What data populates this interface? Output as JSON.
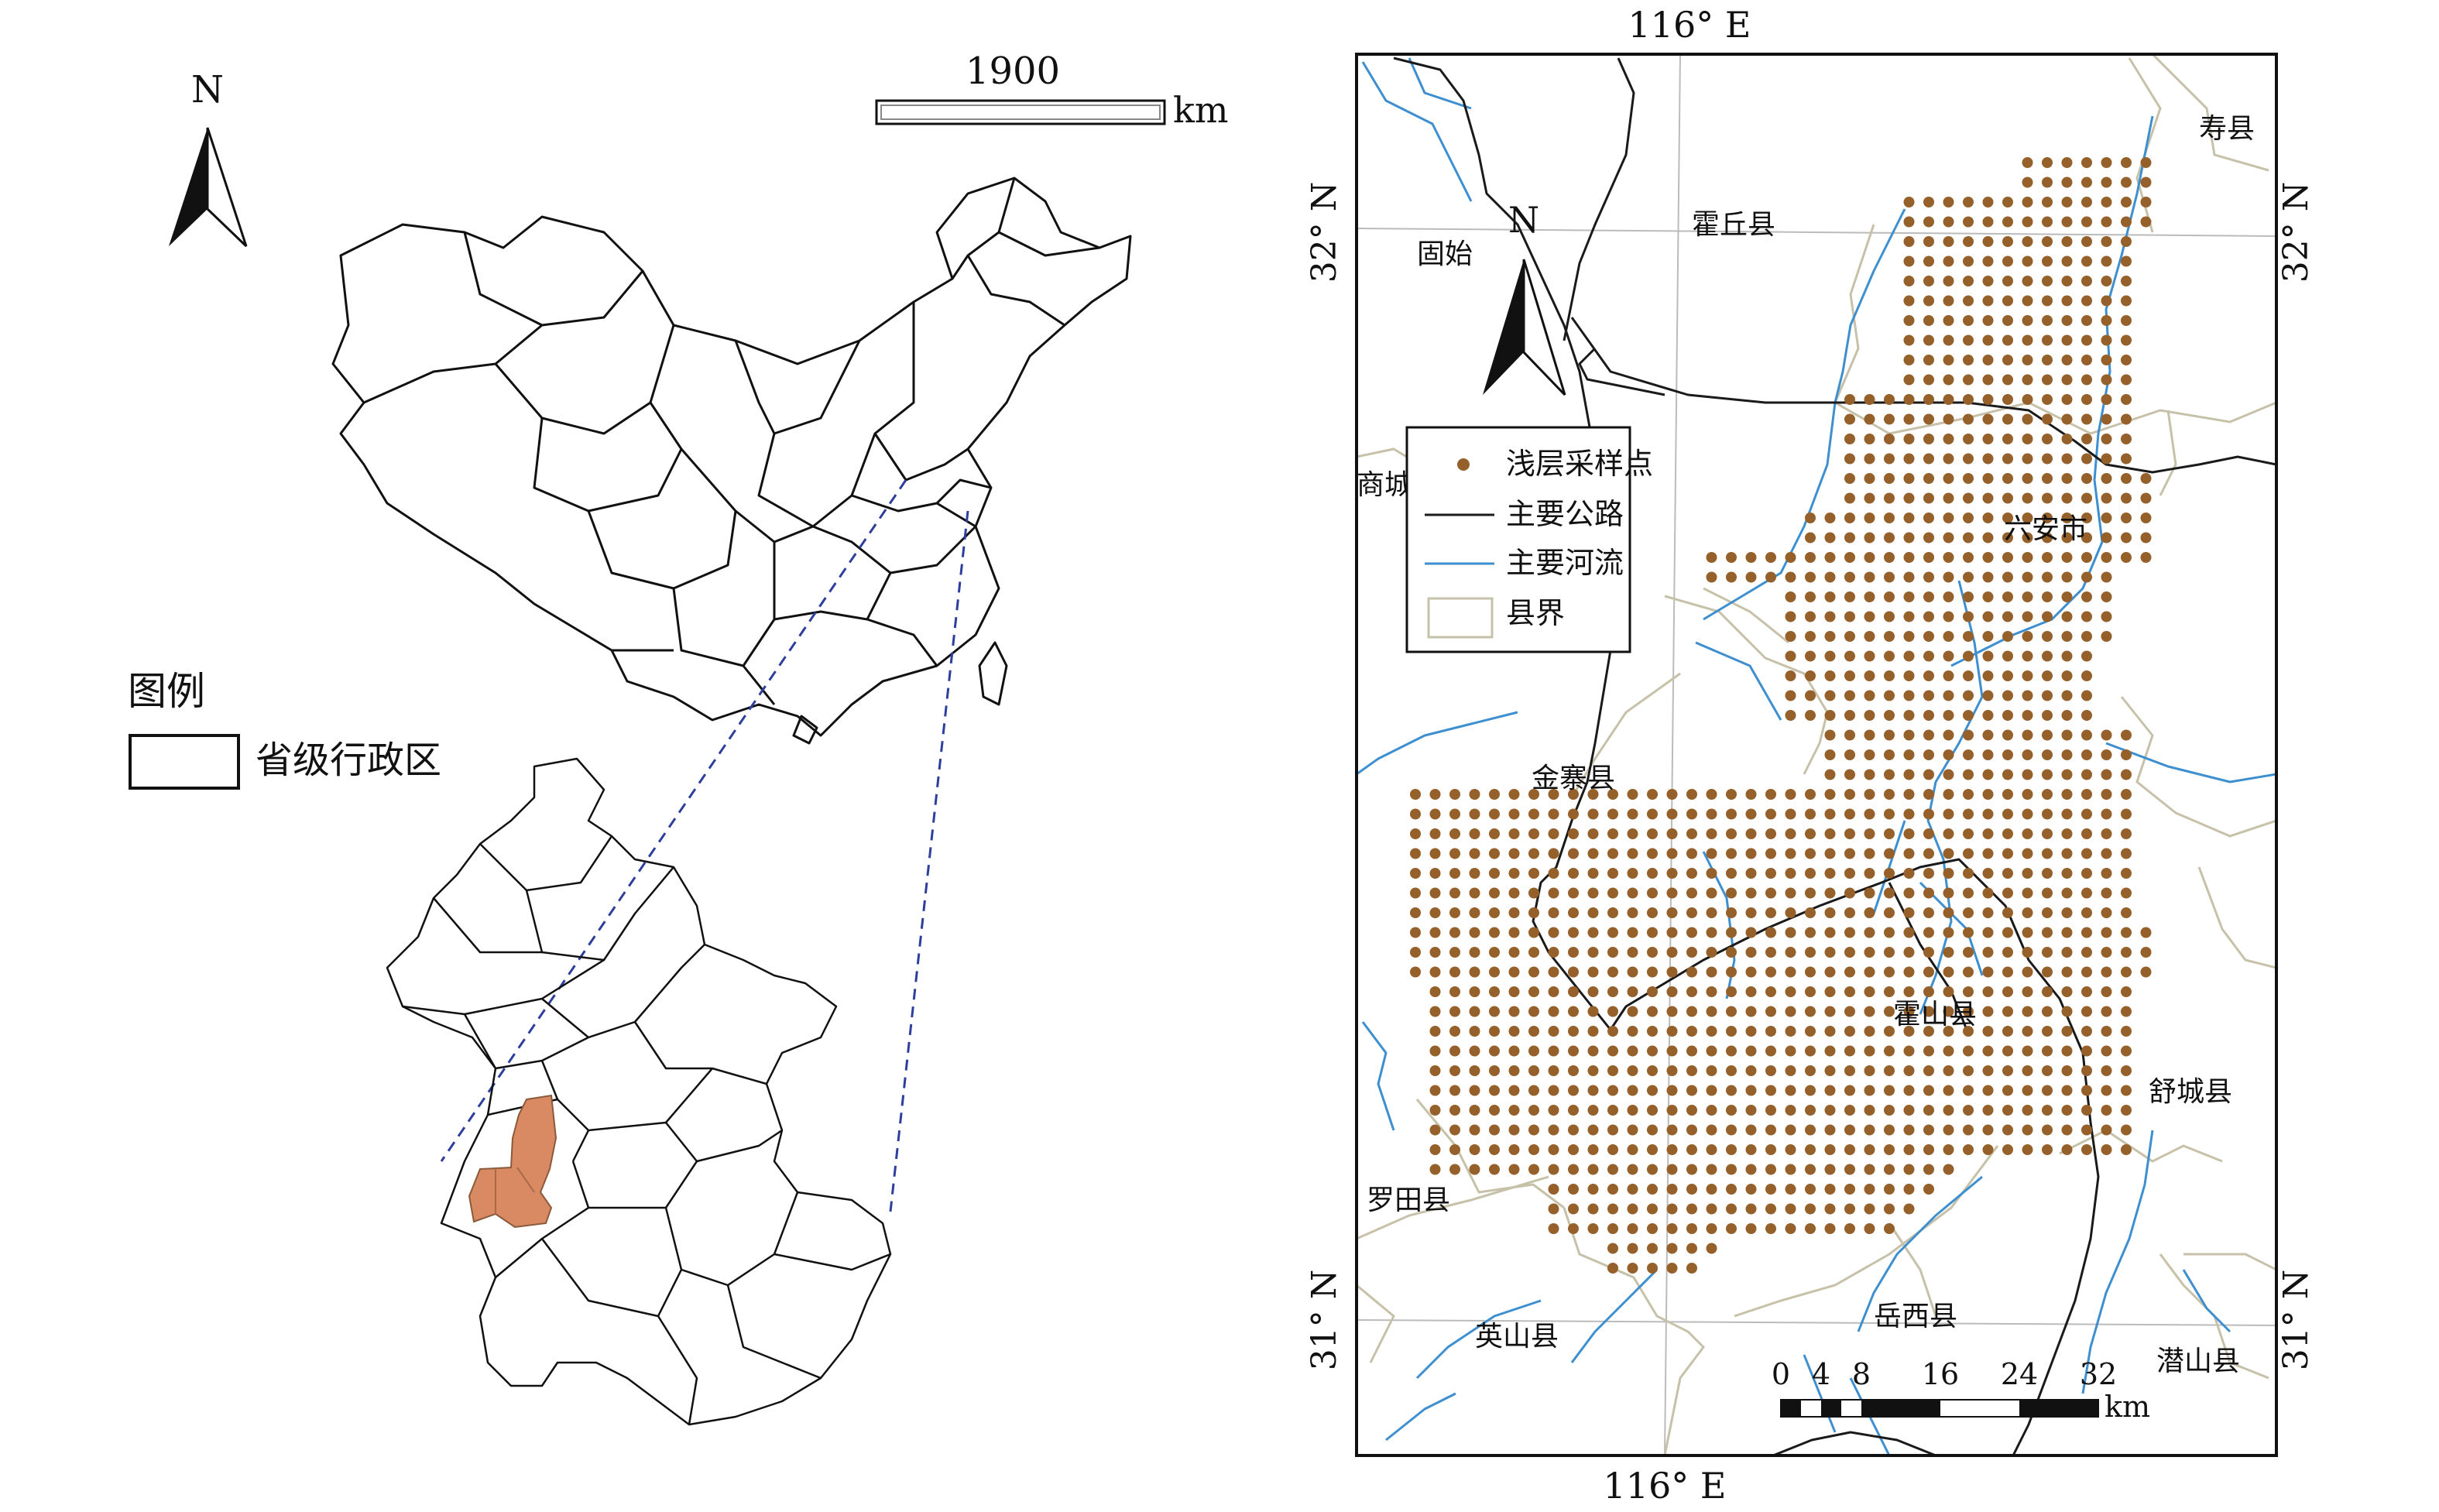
{
  "overview": {
    "north_label": "N",
    "scale_value": "1900",
    "scale_unit": "km",
    "legend_title": "图例",
    "legend_item": "省级行政区",
    "highlight_color": "#d98a62",
    "line_color": "#111111"
  },
  "detail_map": {
    "north_label": "N",
    "graticule": {
      "lon_label": "116° E",
      "lat_top": "32° N",
      "lat_bottom": "31° N"
    },
    "legend": {
      "sample_points": "浅层采样点",
      "main_roads": "主要公路",
      "main_rivers": "主要河流",
      "county_boundary": "县界"
    },
    "colors": {
      "sample_point": "#96602a",
      "road": "#1a1a1a",
      "river": "#3d8fd0",
      "county_line": "#c6c1a8"
    },
    "places": {
      "shouxian": "寿县",
      "huoqiu": "霍丘县",
      "gushi": "固始",
      "shangcheng": "商城",
      "luan": "六安市",
      "jinzhai": "金寨县",
      "huoshan": "霍山县",
      "shucheng": "舒城县",
      "luotian": "罗田县",
      "yingshan": "英山县",
      "yuexi": "岳西县",
      "qianshan": "潜山县"
    },
    "scalebar": {
      "ticks": [
        "0",
        "4",
        "8",
        "16",
        "24",
        "32"
      ],
      "unit": "km"
    }
  }
}
